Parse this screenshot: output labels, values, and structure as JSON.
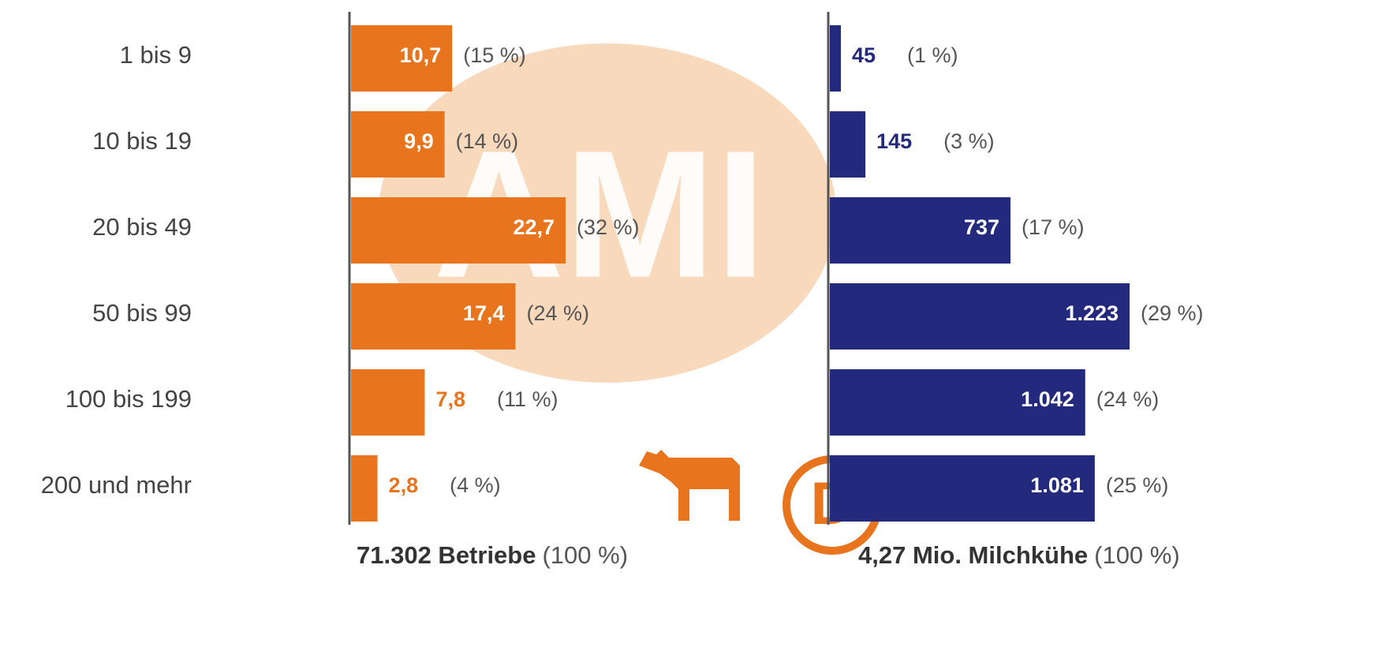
{
  "chart_data": [
    {
      "type": "bar",
      "orientation": "horizontal",
      "color": "#e8741e",
      "categories": [
        "1 bis 9",
        "10 bis 19",
        "20 bis 49",
        "50 bis 99",
        "100 bis 199",
        "200 und mehr"
      ],
      "values": [
        10.7,
        9.9,
        22.7,
        17.4,
        7.8,
        2.8
      ],
      "value_labels": [
        "10,7",
        "9,9",
        "22,7",
        "17,4",
        "7,8",
        "2,8"
      ],
      "shares": [
        15,
        14,
        32,
        24,
        11,
        4
      ],
      "share_labels": [
        "(15 %)",
        "(14 %)",
        "(32 %)",
        "(24 %)",
        "(11 %)",
        "(4 %)"
      ],
      "total_label": "71.302 Betriebe",
      "total_share": "(100 %)"
    },
    {
      "type": "bar",
      "orientation": "horizontal",
      "color": "#232a7e",
      "categories": [
        "1 bis 9",
        "10 bis 19",
        "20 bis 49",
        "50 bis 99",
        "100 bis 199",
        "200 und mehr"
      ],
      "values": [
        45,
        145,
        737,
        1223,
        1042,
        1081
      ],
      "value_labels": [
        "45",
        "145",
        "737",
        "1.223",
        "1.042",
        "1.081"
      ],
      "shares": [
        1,
        3,
        17,
        29,
        24,
        25
      ],
      "share_labels": [
        "(1 %)",
        "(3 %)",
        "(17 %)",
        "(29 %)",
        "(24 %)",
        "(25 %)"
      ],
      "total_label": "4,27 Mio. Milchkühe",
      "total_share": "(100 %)"
    }
  ],
  "watermark": "AMI",
  "country": "D"
}
